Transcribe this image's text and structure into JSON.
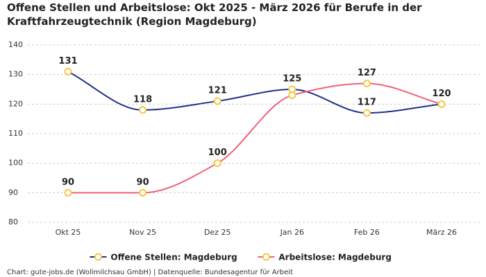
{
  "chart_data": {
    "type": "line",
    "title": "Offene Stellen und Arbeitslose: Okt 2025 - März 2026 für Berufe in der Kraftfahrzeugtechnik (Region Magdeburg)",
    "categories": [
      "Okt 25",
      "Nov 25",
      "Dez 25",
      "Jan 26",
      "Feb 26",
      "März 26"
    ],
    "series": [
      {
        "name": "Offene Stellen: Magdeburg",
        "color": "#1f2f8c",
        "values": [
          131,
          118,
          121,
          125,
          117,
          120
        ],
        "value_labels": [
          "131",
          "118",
          "121",
          "125",
          "117",
          "120"
        ]
      },
      {
        "name": "Arbeitslose: Magdeburg",
        "color": "#f0607a",
        "values": [
          90,
          90,
          100,
          123,
          127,
          120
        ],
        "value_labels": [
          "90",
          "90",
          "100",
          null,
          "127",
          null
        ]
      }
    ],
    "marker_color": "#f5c842",
    "ylim": [
      80,
      140
    ],
    "yticks": [
      80,
      90,
      100,
      110,
      120,
      130,
      140
    ],
    "grid": true,
    "legend": "bottom",
    "source": "Chart: gute-jobs.de (Wollmilchsau GmbH) | Datenquelle: Bundesagentur für Arbeit"
  }
}
